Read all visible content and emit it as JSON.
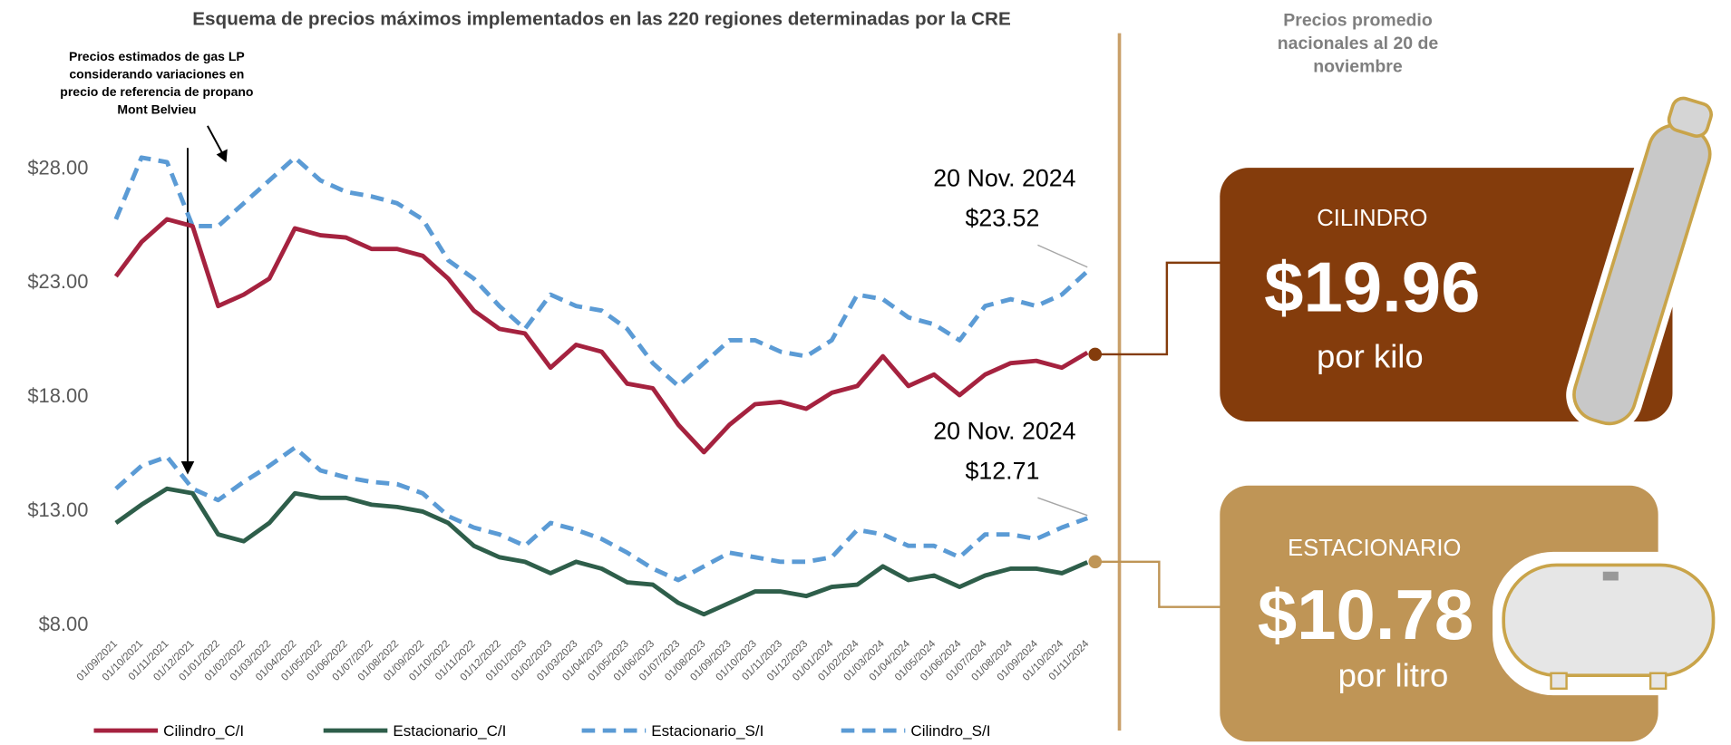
{
  "chart_data": {
    "type": "line",
    "title": "Esquema de precios máximos implementados en las 220 regiones determinadas por la CRE",
    "annotation": [
      "Precios estimados de gas LP",
      "considerando variaciones en",
      "precio de referencia de propano",
      "Mont Belvieu"
    ],
    "callouts": [
      {
        "date": "20 Nov. 2024",
        "label": "$23.52"
      },
      {
        "date": "20 Nov. 2024",
        "label": "$12.71"
      }
    ],
    "categories": [
      "01/09/2021",
      "01/10/2021",
      "01/11/2021",
      "01/12/2021",
      "01/01/2022",
      "01/02/2022",
      "01/03/2022",
      "01/04/2022",
      "01/05/2022",
      "01/06/2022",
      "01/07/2022",
      "01/08/2022",
      "01/09/2022",
      "01/10/2022",
      "01/11/2022",
      "01/12/2022",
      "01/01/2023",
      "01/02/2023",
      "01/03/2023",
      "01/04/2023",
      "01/05/2023",
      "01/06/2023",
      "01/07/2023",
      "01/08/2023",
      "01/09/2023",
      "01/10/2023",
      "01/11/2023",
      "01/12/2023",
      "01/01/2024",
      "01/02/2024",
      "01/03/2024",
      "01/04/2024",
      "01/05/2024",
      "01/06/2024",
      "01/07/2024",
      "01/08/2024",
      "01/09/2024",
      "01/10/2024",
      "01/11/2024"
    ],
    "series": [
      {
        "name": "Cilindro_C/I",
        "color": "#a5223f",
        "dashed": false,
        "values": [
          23.3,
          24.8,
          25.8,
          25.5,
          22.0,
          22.5,
          23.2,
          25.4,
          25.1,
          25.0,
          24.5,
          24.5,
          24.2,
          23.2,
          21.8,
          21.0,
          20.8,
          19.3,
          20.3,
          20.0,
          18.6,
          18.4,
          16.8,
          15.6,
          16.8,
          17.7,
          17.8,
          17.5,
          18.2,
          18.5,
          19.8,
          18.5,
          19.0,
          18.1,
          19.0,
          19.5,
          19.6,
          19.3,
          19.96
        ]
      },
      {
        "name": "Estacionario_C/I",
        "color": "#2e5e4a",
        "dashed": false,
        "values": [
          12.5,
          13.3,
          14.0,
          13.8,
          12.0,
          11.7,
          12.5,
          13.8,
          13.6,
          13.6,
          13.3,
          13.2,
          13.0,
          12.5,
          11.5,
          11.0,
          10.8,
          10.3,
          10.8,
          10.5,
          9.9,
          9.8,
          9.0,
          8.5,
          9.0,
          9.5,
          9.5,
          9.3,
          9.7,
          9.8,
          10.6,
          10.0,
          10.2,
          9.7,
          10.2,
          10.5,
          10.5,
          10.3,
          10.78
        ]
      },
      {
        "name": "Estacionario_S/I",
        "color": "#5b9bd5",
        "dashed": true,
        "values": [
          14.0,
          15.0,
          15.4,
          14.0,
          13.5,
          14.3,
          15.0,
          15.8,
          14.8,
          14.5,
          14.3,
          14.2,
          13.8,
          12.8,
          12.3,
          12.0,
          11.5,
          12.5,
          12.2,
          11.8,
          11.2,
          10.5,
          10.0,
          10.6,
          11.2,
          11.0,
          10.8,
          10.8,
          11.0,
          12.2,
          12.0,
          11.5,
          11.5,
          11.0,
          12.0,
          12.0,
          11.8,
          12.3,
          12.71
        ]
      },
      {
        "name": "Cilindro_S/I",
        "color": "#5b9bd5",
        "dashed": true,
        "values": [
          25.8,
          28.5,
          28.3,
          25.5,
          25.5,
          26.5,
          27.5,
          28.5,
          27.5,
          27.0,
          26.8,
          26.5,
          25.8,
          24.0,
          23.2,
          22.0,
          21.0,
          22.5,
          22.0,
          21.8,
          21.0,
          19.5,
          18.5,
          19.5,
          20.5,
          20.5,
          20.0,
          19.8,
          20.5,
          22.5,
          22.3,
          21.5,
          21.2,
          20.5,
          22.0,
          22.3,
          22.0,
          22.5,
          23.52
        ]
      }
    ],
    "ylim": [
      8,
      31
    ],
    "yticks": [
      {
        "value": 8,
        "label": "$8.00"
      },
      {
        "value": 13,
        "label": "$13.00"
      },
      {
        "value": 18,
        "label": "$18.00"
      },
      {
        "value": 23,
        "label": "$23.00"
      },
      {
        "value": 28,
        "label": "$28.00"
      }
    ],
    "grid": false,
    "legend": "bottom"
  },
  "panel": {
    "title": [
      "Precios promedio",
      "nacionales al 20 de",
      "noviembre"
    ],
    "cards": [
      {
        "name": "CILINDRO",
        "price": "$19.96",
        "unit": "por kilo",
        "color": "#843c0c"
      },
      {
        "name": "ESTACIONARIO",
        "price": "$10.78",
        "unit": "por litro",
        "color": "#bf9556"
      }
    ]
  }
}
